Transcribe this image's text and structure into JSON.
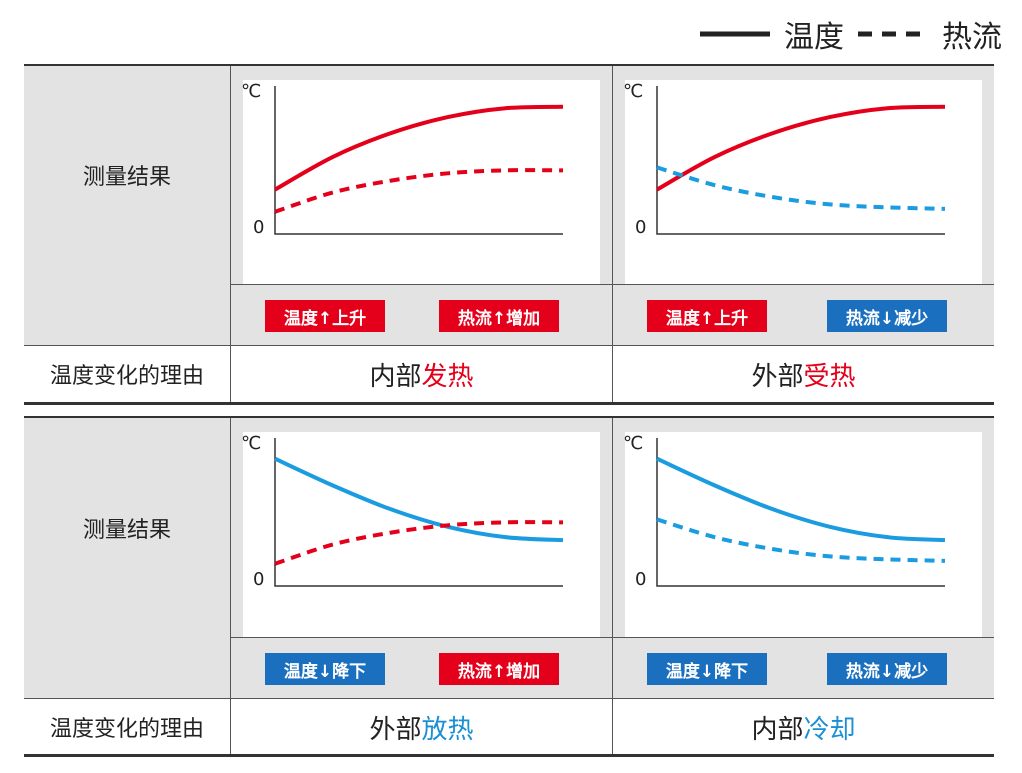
{
  "legend": {
    "temperature": "温度",
    "heat_flow": "热流"
  },
  "colors": {
    "red": "#e4001a",
    "blue_line": "#1b9ce0",
    "blue_badge": "#1b6fbf",
    "gray_bg": "#e3e3e3"
  },
  "axis": {
    "unit": "℃",
    "zero": "0"
  },
  "row_labels": {
    "measurement": "测量结果",
    "reason": "温度变化的理由"
  },
  "panels": [
    {
      "temp_badge": "温度↑上升",
      "temp_badge_color": "red",
      "flow_badge": "热流↑增加",
      "flow_badge_color": "red",
      "reason_prefix": "内部",
      "reason_keyword": "发热",
      "keyword_color": "red",
      "chart_data": {
        "type": "line",
        "series": [
          {
            "name": "温度",
            "style": "solid",
            "color": "red",
            "x": [
              0,
              0.2,
              0.4,
              0.6,
              0.8,
              1.0
            ],
            "y": [
              0.3,
              0.52,
              0.68,
              0.79,
              0.85,
              0.86
            ]
          },
          {
            "name": "热流",
            "style": "dashed",
            "color": "red",
            "x": [
              0,
              0.2,
              0.4,
              0.6,
              0.8,
              1.0
            ],
            "y": [
              0.15,
              0.28,
              0.36,
              0.41,
              0.43,
              0.43
            ]
          }
        ]
      }
    },
    {
      "temp_badge": "温度↑上升",
      "temp_badge_color": "red",
      "flow_badge": "热流↓减少",
      "flow_badge_color": "blue",
      "reason_prefix": "外部",
      "reason_keyword": "受热",
      "keyword_color": "red",
      "chart_data": {
        "type": "line",
        "series": [
          {
            "name": "温度",
            "style": "solid",
            "color": "red",
            "x": [
              0,
              0.2,
              0.4,
              0.6,
              0.8,
              1.0
            ],
            "y": [
              0.3,
              0.52,
              0.68,
              0.79,
              0.85,
              0.86
            ]
          },
          {
            "name": "热流",
            "style": "dashed",
            "color": "blue",
            "x": [
              0,
              0.2,
              0.4,
              0.6,
              0.8,
              1.0
            ],
            "y": [
              0.45,
              0.33,
              0.25,
              0.2,
              0.18,
              0.17
            ]
          }
        ]
      }
    },
    {
      "temp_badge": "温度↓降下",
      "temp_badge_color": "blue",
      "flow_badge": "热流↑增加",
      "flow_badge_color": "red",
      "reason_prefix": "外部",
      "reason_keyword": "放热",
      "keyword_color": "blue",
      "chart_data": {
        "type": "line",
        "series": [
          {
            "name": "温度",
            "style": "solid",
            "color": "blue",
            "x": [
              0,
              0.2,
              0.4,
              0.6,
              0.8,
              1.0
            ],
            "y": [
              0.86,
              0.68,
              0.52,
              0.4,
              0.33,
              0.31
            ]
          },
          {
            "name": "热流",
            "style": "dashed",
            "color": "red",
            "x": [
              0,
              0.2,
              0.4,
              0.6,
              0.8,
              1.0
            ],
            "y": [
              0.15,
              0.28,
              0.36,
              0.41,
              0.43,
              0.43
            ]
          }
        ]
      }
    },
    {
      "temp_badge": "温度↓降下",
      "temp_badge_color": "blue",
      "flow_badge": "热流↓减少",
      "flow_badge_color": "blue",
      "reason_prefix": "内部",
      "reason_keyword": "冷却",
      "keyword_color": "blue",
      "chart_data": {
        "type": "line",
        "series": [
          {
            "name": "温度",
            "style": "solid",
            "color": "blue",
            "x": [
              0,
              0.2,
              0.4,
              0.6,
              0.8,
              1.0
            ],
            "y": [
              0.86,
              0.68,
              0.52,
              0.4,
              0.33,
              0.31
            ]
          },
          {
            "name": "热流",
            "style": "dashed",
            "color": "blue",
            "x": [
              0,
              0.2,
              0.4,
              0.6,
              0.8,
              1.0
            ],
            "y": [
              0.45,
              0.33,
              0.25,
              0.2,
              0.18,
              0.17
            ]
          }
        ]
      }
    }
  ]
}
